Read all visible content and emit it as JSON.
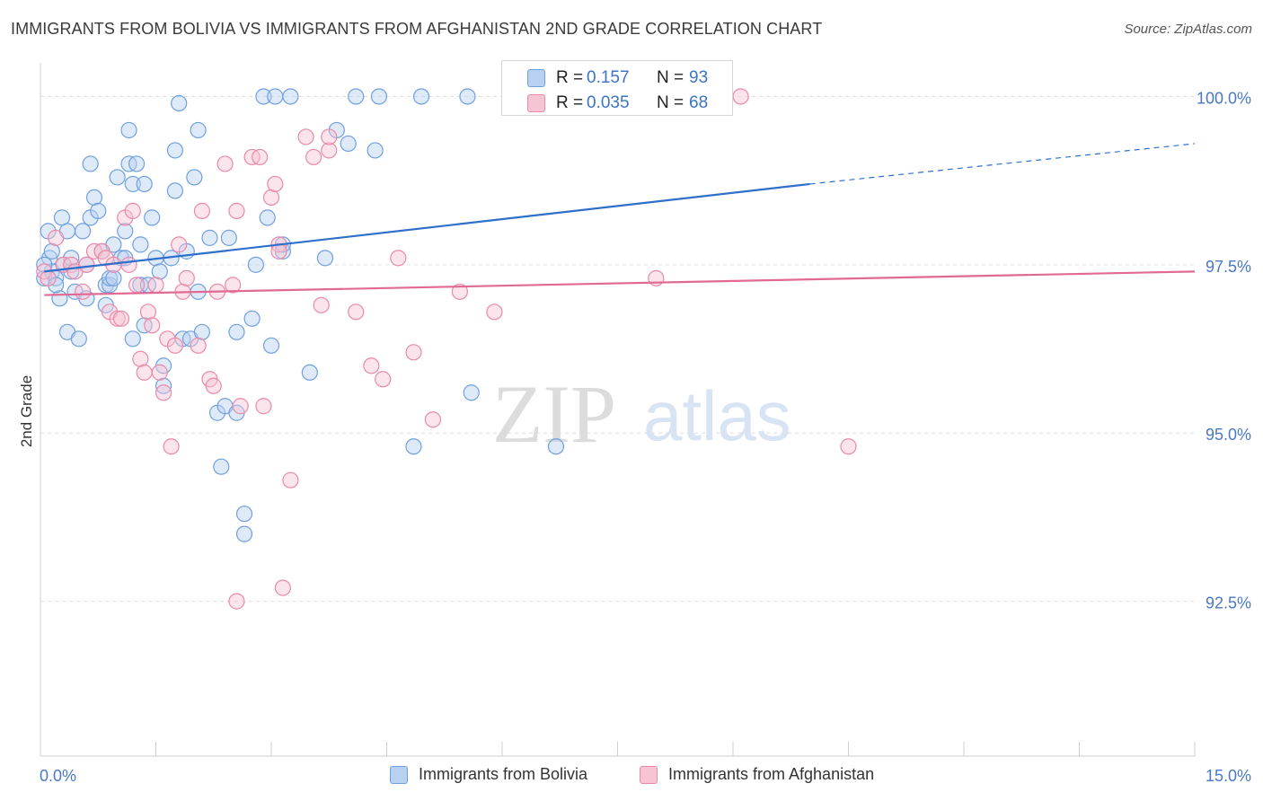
{
  "title": "IMMIGRANTS FROM BOLIVIA VS IMMIGRANTS FROM AFGHANISTAN 2ND GRADE CORRELATION CHART",
  "source": "Source: ZipAtlas.com",
  "watermark": {
    "zip": "ZIP",
    "atlas": "atlas"
  },
  "legend": {
    "r_label": "R =",
    "n_label": "N =",
    "rows": [
      {
        "r": "0.157",
        "n": "93",
        "color": "#6fa0de",
        "fill": "#b9d1f1"
      },
      {
        "r": "0.035",
        "n": "68",
        "color": "#e98aa8",
        "fill": "#f7c4d3"
      }
    ]
  },
  "chart_data": {
    "type": "scatter",
    "title": "IMMIGRANTS FROM BOLIVIA VS IMMIGRANTS FROM AFGHANISTAN 2ND GRADE CORRELATION CHART",
    "xlabel": "",
    "ylabel": "2nd Grade",
    "xlim": [
      0,
      15
    ],
    "ylim": [
      90.2,
      100.5
    ],
    "x_tick_labels": [
      {
        "value": 0,
        "label": "0.0%"
      },
      {
        "value": 15,
        "label": "15.0%"
      }
    ],
    "y_tick_labels": [
      {
        "value": 100,
        "label": "100.0%"
      },
      {
        "value": 97.5,
        "label": "97.5%"
      },
      {
        "value": 95,
        "label": "95.0%"
      },
      {
        "value": 92.5,
        "label": "92.5%"
      }
    ],
    "grid": "horizontal-dashed",
    "legend_position": "top-center",
    "series": [
      {
        "name": "Immigrants from Bolivia",
        "color": "#6fa0de",
        "fill": "#b9d1f1",
        "trend": {
          "x": [
            0.05,
            10.0
          ],
          "y": [
            97.4,
            98.7
          ],
          "dashed_to": [
            15.0,
            99.3
          ]
        },
        "points": [
          [
            0.05,
            97.3
          ],
          [
            0.1,
            98.0
          ],
          [
            0.12,
            97.6
          ],
          [
            0.15,
            97.4
          ],
          [
            0.2,
            97.3
          ],
          [
            0.25,
            97.0
          ],
          [
            0.28,
            98.2
          ],
          [
            0.3,
            97.5
          ],
          [
            0.35,
            98.0
          ],
          [
            0.35,
            96.5
          ],
          [
            0.4,
            97.4
          ],
          [
            0.4,
            97.6
          ],
          [
            0.45,
            97.1
          ],
          [
            0.5,
            96.4
          ],
          [
            0.55,
            98.0
          ],
          [
            0.6,
            97.0
          ],
          [
            0.65,
            98.2
          ],
          [
            0.65,
            99.0
          ],
          [
            0.7,
            98.5
          ],
          [
            0.75,
            98.3
          ],
          [
            0.8,
            97.7
          ],
          [
            0.85,
            97.2
          ],
          [
            0.85,
            96.9
          ],
          [
            0.9,
            97.2
          ],
          [
            0.9,
            97.3
          ],
          [
            0.95,
            97.8
          ],
          [
            1.0,
            98.8
          ],
          [
            1.05,
            97.6
          ],
          [
            1.1,
            97.6
          ],
          [
            1.15,
            99.0
          ],
          [
            1.15,
            99.5
          ],
          [
            1.2,
            98.7
          ],
          [
            1.2,
            96.4
          ],
          [
            1.25,
            99.0
          ],
          [
            1.3,
            97.8
          ],
          [
            1.3,
            97.2
          ],
          [
            1.35,
            98.7
          ],
          [
            1.35,
            96.6
          ],
          [
            1.4,
            97.2
          ],
          [
            1.45,
            98.2
          ],
          [
            1.5,
            97.6
          ],
          [
            1.55,
            97.4
          ],
          [
            1.6,
            96.0
          ],
          [
            1.6,
            95.7
          ],
          [
            1.7,
            97.6
          ],
          [
            1.75,
            98.6
          ],
          [
            1.75,
            99.2
          ],
          [
            1.8,
            99.9
          ],
          [
            1.85,
            96.4
          ],
          [
            1.9,
            97.7
          ],
          [
            1.95,
            96.4
          ],
          [
            2.0,
            98.8
          ],
          [
            2.05,
            99.5
          ],
          [
            2.1,
            96.5
          ],
          [
            2.2,
            97.9
          ],
          [
            2.3,
            95.3
          ],
          [
            2.35,
            94.5
          ],
          [
            2.4,
            95.4
          ],
          [
            2.45,
            97.9
          ],
          [
            2.55,
            96.5
          ],
          [
            2.55,
            95.3
          ],
          [
            2.65,
            93.8
          ],
          [
            2.65,
            93.5
          ],
          [
            2.75,
            96.7
          ],
          [
            2.8,
            97.5
          ],
          [
            2.9,
            100.0
          ],
          [
            2.95,
            98.2
          ],
          [
            3.0,
            96.3
          ],
          [
            3.05,
            100.0
          ],
          [
            3.15,
            97.7
          ],
          [
            3.15,
            97.8
          ],
          [
            3.25,
            100.0
          ],
          [
            3.5,
            95.9
          ],
          [
            3.7,
            97.6
          ],
          [
            3.85,
            99.5
          ],
          [
            4.0,
            99.3
          ],
          [
            4.1,
            100.0
          ],
          [
            4.35,
            99.2
          ],
          [
            4.4,
            100.0
          ],
          [
            4.85,
            94.8
          ],
          [
            4.95,
            100.0
          ],
          [
            5.55,
            100.0
          ],
          [
            5.6,
            95.6
          ],
          [
            6.7,
            94.8
          ],
          [
            6.8,
            99.9
          ],
          [
            8.5,
            100.0
          ],
          [
            0.2,
            97.2
          ],
          [
            0.15,
            97.7
          ],
          [
            0.05,
            97.5
          ],
          [
            0.6,
            97.5
          ],
          [
            1.1,
            98.0
          ],
          [
            2.05,
            97.1
          ],
          [
            0.95,
            97.3
          ]
        ]
      },
      {
        "name": "Immigrants from Afghanistan",
        "color": "#e98aa8",
        "fill": "#f7c4d3",
        "trend": {
          "x": [
            0.05,
            15.0
          ],
          "y": [
            97.05,
            97.4
          ]
        },
        "points": [
          [
            0.05,
            97.4
          ],
          [
            0.1,
            97.3
          ],
          [
            0.2,
            97.9
          ],
          [
            0.3,
            97.5
          ],
          [
            0.4,
            97.5
          ],
          [
            0.45,
            97.4
          ],
          [
            0.55,
            97.1
          ],
          [
            0.6,
            97.5
          ],
          [
            0.7,
            97.7
          ],
          [
            0.8,
            97.7
          ],
          [
            0.85,
            97.6
          ],
          [
            0.95,
            97.5
          ],
          [
            0.9,
            96.8
          ],
          [
            1.0,
            96.7
          ],
          [
            1.05,
            96.7
          ],
          [
            1.1,
            98.2
          ],
          [
            1.15,
            97.5
          ],
          [
            1.2,
            98.3
          ],
          [
            1.25,
            97.2
          ],
          [
            1.3,
            96.1
          ],
          [
            1.35,
            95.9
          ],
          [
            1.4,
            96.8
          ],
          [
            1.45,
            96.6
          ],
          [
            1.5,
            97.2
          ],
          [
            1.55,
            95.9
          ],
          [
            1.6,
            95.6
          ],
          [
            1.65,
            96.4
          ],
          [
            1.7,
            94.8
          ],
          [
            1.75,
            96.3
          ],
          [
            1.8,
            97.8
          ],
          [
            1.85,
            97.1
          ],
          [
            1.9,
            97.3
          ],
          [
            2.05,
            96.3
          ],
          [
            2.1,
            98.3
          ],
          [
            2.2,
            95.8
          ],
          [
            2.25,
            95.7
          ],
          [
            2.3,
            97.1
          ],
          [
            2.4,
            99.0
          ],
          [
            2.5,
            97.2
          ],
          [
            2.55,
            98.3
          ],
          [
            2.55,
            92.5
          ],
          [
            2.6,
            95.4
          ],
          [
            2.75,
            99.1
          ],
          [
            2.85,
            99.1
          ],
          [
            2.9,
            95.4
          ],
          [
            3.0,
            98.5
          ],
          [
            3.05,
            98.7
          ],
          [
            3.1,
            97.8
          ],
          [
            3.15,
            92.7
          ],
          [
            3.25,
            94.3
          ],
          [
            3.45,
            99.4
          ],
          [
            3.55,
            99.1
          ],
          [
            3.65,
            96.9
          ],
          [
            3.75,
            99.2
          ],
          [
            3.75,
            99.4
          ],
          [
            4.1,
            96.8
          ],
          [
            4.3,
            96.0
          ],
          [
            4.45,
            95.8
          ],
          [
            4.65,
            97.6
          ],
          [
            4.85,
            96.2
          ],
          [
            5.1,
            95.2
          ],
          [
            5.45,
            97.1
          ],
          [
            5.9,
            96.8
          ],
          [
            6.6,
            100.0
          ],
          [
            8.0,
            97.3
          ],
          [
            9.1,
            100.0
          ],
          [
            10.5,
            94.8
          ],
          [
            3.1,
            97.7
          ]
        ]
      }
    ]
  }
}
